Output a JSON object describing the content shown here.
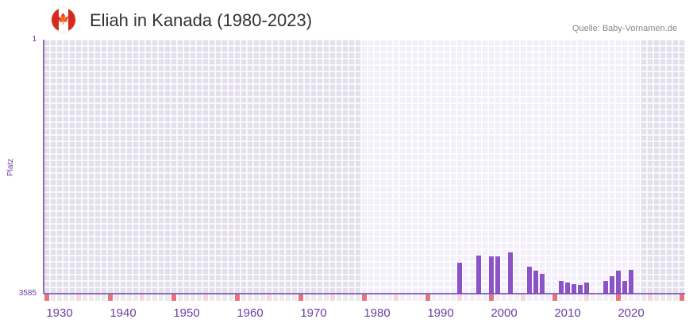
{
  "title": "Eliah in Kanada (1980-2023)",
  "source": "Quelle: Baby-Vornamen.de",
  "flag_icon": "canada-flag-icon",
  "chart_data": {
    "type": "bar",
    "title": "Eliah in Kanada (1980-2023)",
    "xlabel": "",
    "ylabel": "Platz",
    "xlim": [
      1928,
      2028
    ],
    "ylim": [
      3585,
      1
    ],
    "y_inverted": true,
    "yticks": [
      "1",
      "3585"
    ],
    "xticks": [
      "1930",
      "1940",
      "1950",
      "1960",
      "1970",
      "1980",
      "1990",
      "2000",
      "2010",
      "2020"
    ],
    "highlight_range": [
      1978,
      2021
    ],
    "x": [
      1993,
      1996,
      1998,
      1999,
      2001,
      2004,
      2005,
      2006,
      2009,
      2010,
      2011,
      2012,
      2013,
      2016,
      2017,
      2018,
      2019,
      2020
    ],
    "values": [
      3148,
      3047,
      3059,
      3059,
      3003,
      3204,
      3260,
      3305,
      3406,
      3428,
      3451,
      3462,
      3428,
      3406,
      3339,
      3260,
      3406,
      3249
    ],
    "colors": {
      "bar": "#8c52c7",
      "axis": "#6a3ea1",
      "marker_major": "#e5727c",
      "marker_minor": "#f5d6df"
    }
  }
}
